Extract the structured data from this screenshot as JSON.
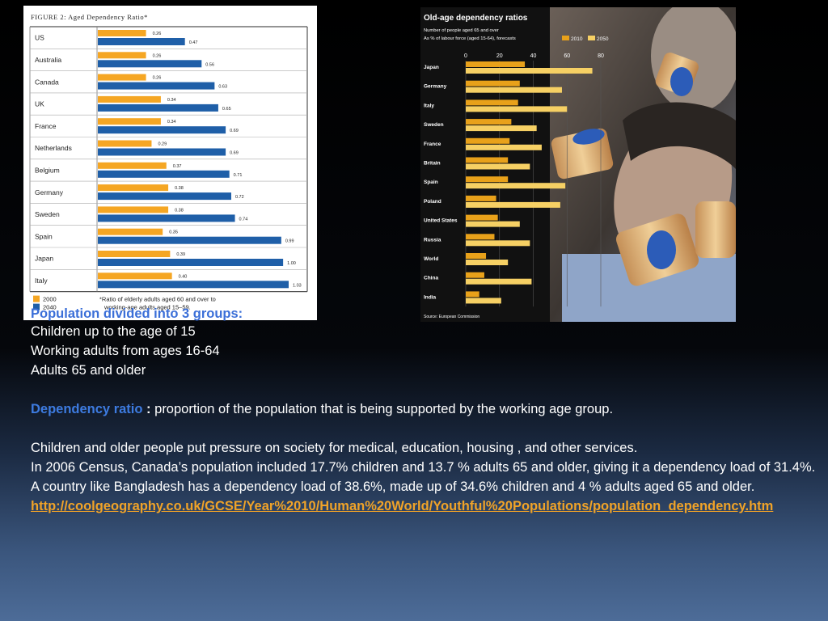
{
  "slide": {
    "heading_partial": "Population divided into 3 groups:",
    "groups": [
      "Children up to the age of 15",
      "Working adults from ages 16-64",
      "Adults 65 and older"
    ],
    "definition_term": "Dependency ratio",
    "definition_colon": " : ",
    "definition_text": "proportion of the population that is being supported by the working age group.",
    "para1": "Children and older people put pressure on society for medical, education, housing , and other services.",
    "para2": "In 2006 Census, Canada’s population included 17.7% children and 13.7 % adults 65 and older, giving it a dependency load of 31.4%. A country like Bangladesh has a dependency load of 38.6%, made up of 34.6% children and 4 % adults  aged 65 and older.",
    "link": "http://coolgeography.co.uk/GCSE/Year%2010/Human%20World/Youthful%20Populations/population_dependency.htm"
  },
  "chart_data": [
    {
      "type": "bar",
      "title": "FIGURE 2:  Aged Dependency Ratio*",
      "categories": [
        "US",
        "Australia",
        "Canada",
        "UK",
        "France",
        "Netherlands",
        "Belgium",
        "Germany",
        "Sweden",
        "Spain",
        "Japan",
        "Italy"
      ],
      "series": [
        {
          "name": "2000",
          "values": [
            0.26,
            0.26,
            0.26,
            0.34,
            0.34,
            0.29,
            0.37,
            0.38,
            0.38,
            0.35,
            0.39,
            0.4
          ],
          "labels": [
            "0.26",
            "0.26",
            "0.26",
            "0.34",
            "0.34",
            "0.29",
            "0.37",
            "0.38",
            "0.38",
            "0.35",
            "0.39",
            "0.40"
          ],
          "color": "#f5a623"
        },
        {
          "name": "2040",
          "values": [
            0.47,
            0.56,
            0.63,
            0.65,
            0.69,
            0.69,
            0.71,
            0.72,
            0.74,
            0.99,
            1.0,
            1.03
          ],
          "labels": [
            "0.47",
            "0.56",
            "0.63",
            "0.65",
            "0.69",
            "0.69",
            "0.71",
            "0.72",
            "0.74",
            "0.99",
            "1.00",
            "1.03"
          ],
          "color": "#1f5fa8"
        }
      ],
      "xlim": [
        0,
        1.1
      ],
      "footnote": "*Ratio of elderly adults aged 60 and over to working-age adults aged 15–59.",
      "legend_position": "bottom-left"
    },
    {
      "type": "bar",
      "title": "Old-age dependency ratios",
      "subtitle_1": "Number of people aged 65 and over",
      "subtitle_2": "As % of labour force (aged 15-64), forecasts",
      "categories": [
        "Japan",
        "Germany",
        "Italy",
        "Sweden",
        "France",
        "Britain",
        "Spain",
        "Poland",
        "United States",
        "Russia",
        "World",
        "China",
        "India"
      ],
      "series": [
        {
          "name": "2010",
          "values": [
            35,
            32,
            31,
            27,
            26,
            25,
            25,
            18,
            19,
            17,
            12,
            11,
            8
          ],
          "color": "#e8a11a"
        },
        {
          "name": "2050",
          "values": [
            75,
            57,
            60,
            42,
            45,
            38,
            59,
            56,
            32,
            38,
            25,
            39,
            21
          ],
          "color": "#f6d064"
        }
      ],
      "xticks": [
        0,
        20,
        40,
        60,
        80
      ],
      "xlim": [
        0,
        80
      ],
      "source": "Source: European Commission",
      "legend_position": "top-right"
    }
  ]
}
